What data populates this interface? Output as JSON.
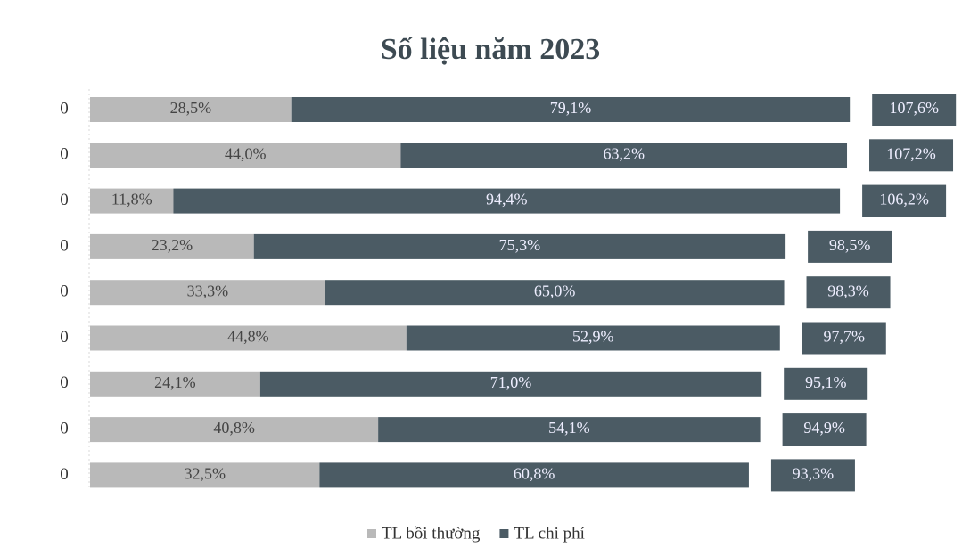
{
  "chart_data": {
    "type": "stacked-bar-horizontal",
    "title": "Số liệu năm 2023",
    "categories": [
      "0",
      "0",
      "0",
      "0",
      "0",
      "0",
      "0",
      "0",
      "0"
    ],
    "series": [
      {
        "name": "TL bồi thường",
        "color": "#b9b9b9",
        "values": [
          28.5,
          44.0,
          11.8,
          23.2,
          33.3,
          44.8,
          24.1,
          40.8,
          32.5
        ],
        "value_labels": [
          "28,5%",
          "44,0%",
          "11,8%",
          "23,2%",
          "33,3%",
          "44,8%",
          "24,1%",
          "40,8%",
          "32,5%"
        ]
      },
      {
        "name": "TL chi phí",
        "color": "#4b5b64",
        "values": [
          79.1,
          63.2,
          94.4,
          75.3,
          65.0,
          52.9,
          71.0,
          54.1,
          60.8
        ],
        "value_labels": [
          "79,1%",
          "63,2%",
          "94,4%",
          "75,3%",
          "65,0%",
          "52,9%",
          "71,0%",
          "54,1%",
          "60,8%"
        ]
      }
    ],
    "totals": {
      "values": [
        107.6,
        107.2,
        106.2,
        98.5,
        98.3,
        97.7,
        95.1,
        94.9,
        93.3
      ],
      "value_labels": [
        "107,6%",
        "107,2%",
        "106,2%",
        "98,5%",
        "98,3%",
        "97,7%",
        "95,1%",
        "94,9%",
        "93,3%"
      ]
    },
    "legend": "bottom"
  }
}
